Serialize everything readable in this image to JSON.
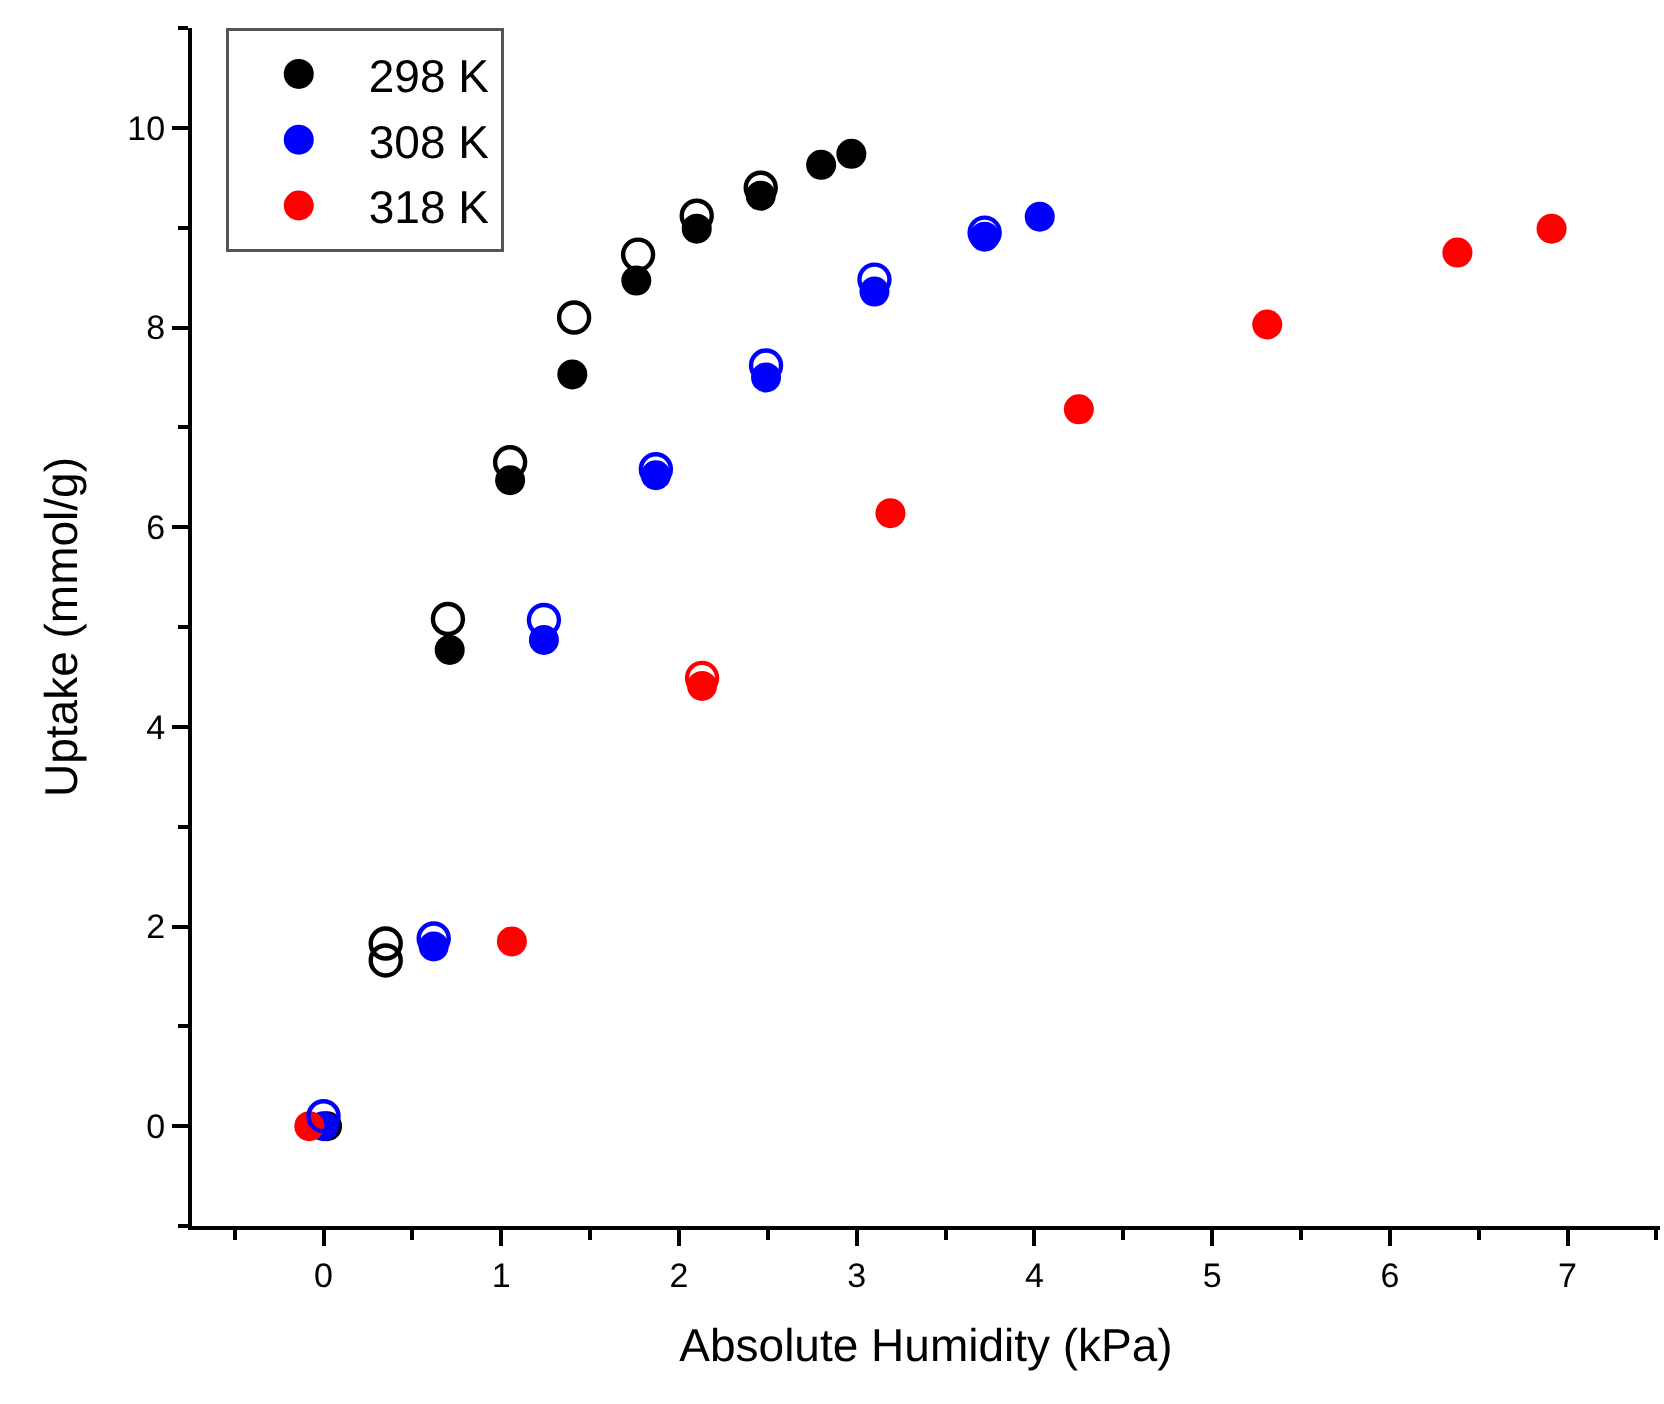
{
  "chart_data": {
    "type": "scatter",
    "xlabel": "Absolute Humidity (kPa)",
    "ylabel": "Uptake (mmol/g)",
    "xlim": [
      -0.74,
      7.52
    ],
    "xticks": [
      0,
      1,
      2,
      3,
      4,
      5,
      6,
      7
    ],
    "ylim": [
      -1,
      11
    ],
    "yticks": [
      0,
      2,
      4,
      6,
      8,
      10
    ],
    "grid": false,
    "legend": "top left",
    "marker": "circle",
    "series": [
      {
        "name": "298 K",
        "color": "#000000",
        "x": [
          0.02,
          0.71,
          1.05,
          1.4,
          1.76,
          2.1,
          2.46,
          2.8,
          2.97
        ],
        "values": [
          0,
          4.77,
          6.47,
          7.53,
          8.47,
          8.99,
          9.32,
          9.63,
          9.74
        ]
      },
      {
        "name": "308 K",
        "color": "#0000ff",
        "x": [
          0.0,
          0.62,
          1.24,
          1.87,
          2.49,
          3.1,
          3.72,
          4.03
        ],
        "values": [
          0,
          1.8,
          4.87,
          6.52,
          7.5,
          8.36,
          8.91,
          9.11
        ]
      },
      {
        "name": "318 K",
        "color": "#ff0000",
        "x": [
          -0.08,
          1.06,
          2.13,
          3.19,
          4.25,
          5.31,
          6.38,
          6.91
        ],
        "values": [
          0,
          1.85,
          4.41,
          6.14,
          7.18,
          8.03,
          8.75,
          8.99
        ]
      },
      {
        "color": "#000000",
        "x": [
          0.35,
          0.35,
          0.7,
          1.05,
          1.41,
          1.77,
          2.1,
          2.46
        ],
        "values": [
          1.83,
          1.66,
          5.08,
          6.65,
          8.1,
          8.73,
          9.12,
          9.4
        ]
      },
      {
        "color": "#0000ff",
        "x": [
          0.0,
          0.62,
          1.24,
          1.87,
          2.49,
          3.1,
          3.72
        ],
        "values": [
          0.1,
          1.88,
          5.07,
          6.58,
          7.62,
          8.48,
          8.95
        ]
      },
      {
        "color": "#ff0000",
        "x": [
          2.13
        ],
        "values": [
          4.49
        ]
      }
    ]
  }
}
